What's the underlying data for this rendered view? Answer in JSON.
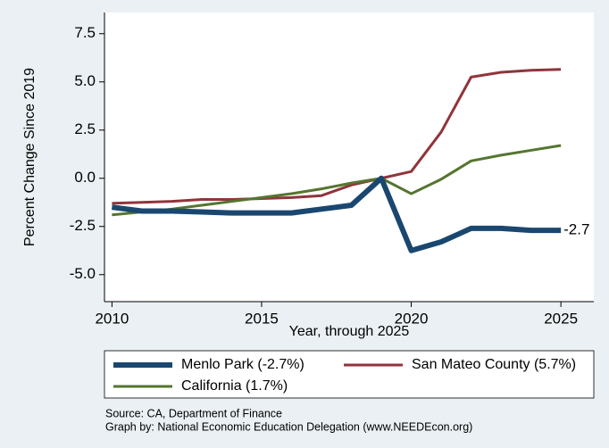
{
  "chart_data": {
    "type": "line",
    "x": [
      2010,
      2011,
      2012,
      2013,
      2014,
      2015,
      2016,
      2017,
      2018,
      2019,
      2020,
      2021,
      2022,
      2023,
      2024,
      2025
    ],
    "series": [
      {
        "name": "Menlo Park (-2.7%)",
        "color": "#1a476f",
        "values": [
          -1.5,
          -1.7,
          -1.7,
          -1.75,
          -1.8,
          -1.8,
          -1.8,
          -1.6,
          -1.4,
          0,
          -3.75,
          -3.3,
          -2.6,
          -2.6,
          -2.7,
          -2.7
        ]
      },
      {
        "name": "San Mateo County (5.7%)",
        "color": "#90353b",
        "values": [
          -1.3,
          -1.25,
          -1.2,
          -1.1,
          -1.1,
          -1.05,
          -1.0,
          -0.9,
          -0.35,
          0,
          0.35,
          2.4,
          5.25,
          5.5,
          5.6,
          5.65
        ]
      },
      {
        "name": "California (1.7%)",
        "color": "#55752f",
        "values": [
          -1.9,
          -1.75,
          -1.6,
          -1.4,
          -1.2,
          -1.0,
          -0.8,
          -0.55,
          -0.25,
          0,
          -0.8,
          -0.05,
          0.9,
          1.2,
          1.45,
          1.7
        ]
      }
    ],
    "annotation": "-2.7",
    "xlabel": "Year, through 2025",
    "ylabel": "Percent Change Since 2019",
    "xlim": [
      2009.75,
      2026.1
    ],
    "ylim": [
      -6.4,
      8.6
    ],
    "xticks": [
      2010,
      2015,
      2020,
      2025
    ],
    "yticks": [
      7.5,
      {
        "value": 5,
        "label": "5.0"
      },
      2.5,
      {
        "value": 0,
        "label": "0.0"
      },
      -2.5,
      {
        "value": -5,
        "label": "-5.0"
      }
    ],
    "grid": false,
    "notes": [
      "Source: CA, Department of Finance",
      "Graph by: National Economic Education Delegation (www.NEEDEcon.org)"
    ]
  }
}
